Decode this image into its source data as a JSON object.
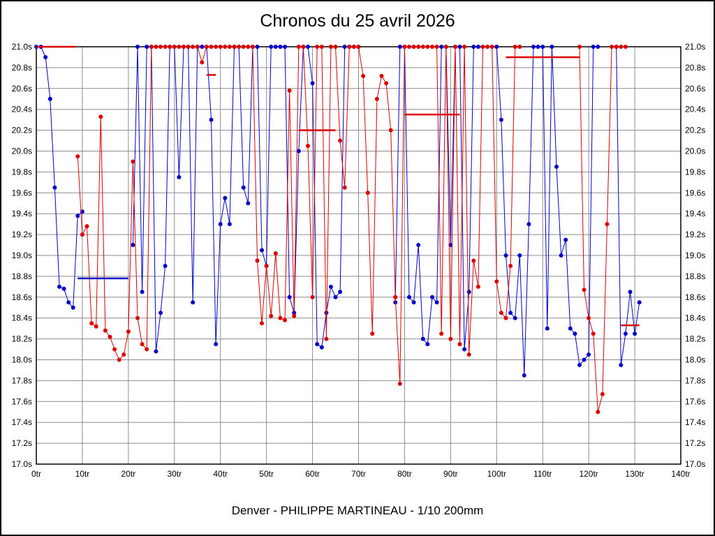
{
  "title": "Chronos du 25 avril 2026",
  "footer": "Denver - PHILIPPE MARTINEAU - 1/10 200mm",
  "chart_data": {
    "type": "line",
    "title": "Chronos du 25 avril 2026",
    "subtitle": "Denver - PHILIPPE MARTINEAU - 1/10 200mm",
    "x_unit": "tr",
    "y_unit": "s",
    "xlim": [
      0,
      140
    ],
    "ylim": [
      17.0,
      21.0
    ],
    "x_tick_step": 10,
    "y_tick_step": 0.2,
    "grid": true,
    "legend_position": "none",
    "clip_max": 21.0,
    "colors": {
      "series_blue": "#0000cc",
      "series_red": "#dd0000",
      "grid": "#8c8c8c",
      "frame": "#000000",
      "background": "#ffffff"
    },
    "series": [
      {
        "name": "driver-blue",
        "color": "#0000cc",
        "points": [
          [
            0,
            21
          ],
          [
            1,
            21
          ],
          [
            2,
            20.9
          ],
          [
            3,
            20.5
          ],
          [
            4,
            19.65
          ],
          [
            5,
            18.7
          ],
          [
            6,
            18.68
          ],
          [
            7,
            18.55
          ],
          [
            8,
            18.5
          ],
          [
            9,
            19.38
          ],
          [
            10,
            19.42
          ],
          [
            21,
            19.1
          ],
          [
            22,
            21
          ],
          [
            23,
            18.65
          ],
          [
            24,
            21
          ],
          [
            25,
            21
          ],
          [
            26,
            18.08
          ],
          [
            27,
            18.45
          ],
          [
            28,
            18.9
          ],
          [
            29,
            21
          ],
          [
            30,
            21
          ],
          [
            31,
            19.75
          ],
          [
            32,
            21
          ],
          [
            33,
            21
          ],
          [
            34,
            18.55
          ],
          [
            35,
            21
          ],
          [
            36,
            21
          ],
          [
            37,
            21
          ],
          [
            38,
            20.3
          ],
          [
            39,
            18.15
          ],
          [
            40,
            19.3
          ],
          [
            41,
            19.55
          ],
          [
            42,
            19.3
          ],
          [
            43,
            21
          ],
          [
            44,
            21
          ],
          [
            45,
            19.65
          ],
          [
            46,
            19.5
          ],
          [
            47,
            21
          ],
          [
            48,
            21
          ],
          [
            49,
            19.05
          ],
          [
            50,
            18.9
          ],
          [
            51,
            21
          ],
          [
            52,
            21
          ],
          [
            53,
            21
          ],
          [
            54,
            21
          ],
          [
            55,
            18.6
          ],
          [
            56,
            18.45
          ],
          [
            57,
            20.0
          ],
          [
            58,
            21
          ],
          [
            59,
            21
          ],
          [
            60,
            20.65
          ],
          [
            61,
            18.15
          ],
          [
            62,
            18.12
          ],
          [
            63,
            18.45
          ],
          [
            64,
            18.7
          ],
          [
            65,
            18.6
          ],
          [
            66,
            18.65
          ],
          [
            67,
            21
          ],
          [
            68,
            21
          ],
          [
            69,
            21
          ],
          [
            70,
            21
          ],
          [
            78,
            18.55
          ],
          [
            79,
            21
          ],
          [
            80,
            21
          ],
          [
            81,
            18.6
          ],
          [
            82,
            18.55
          ],
          [
            83,
            19.1
          ],
          [
            84,
            18.2
          ],
          [
            85,
            18.15
          ],
          [
            86,
            18.6
          ],
          [
            87,
            18.55
          ],
          [
            88,
            21
          ],
          [
            89,
            21
          ],
          [
            90,
            19.1
          ],
          [
            91,
            21
          ],
          [
            92,
            21
          ],
          [
            93,
            18.1
          ],
          [
            94,
            18.65
          ],
          [
            95,
            21
          ],
          [
            96,
            21
          ],
          [
            100,
            21
          ],
          [
            101,
            20.3
          ],
          [
            102,
            19.0
          ],
          [
            103,
            18.45
          ],
          [
            104,
            18.4
          ],
          [
            105,
            19.0
          ],
          [
            106,
            17.85
          ],
          [
            107,
            19.3
          ],
          [
            108,
            21
          ],
          [
            109,
            21
          ],
          [
            110,
            21
          ],
          [
            111,
            18.3
          ],
          [
            112,
            21
          ],
          [
            113,
            19.85
          ],
          [
            114,
            19.0
          ],
          [
            115,
            19.15
          ],
          [
            116,
            18.3
          ],
          [
            117,
            18.25
          ],
          [
            118,
            17.95
          ],
          [
            119,
            18.0
          ],
          [
            120,
            18.05
          ],
          [
            121,
            21
          ],
          [
            122,
            21
          ],
          [
            126,
            21
          ],
          [
            127,
            17.95
          ],
          [
            128,
            18.25
          ],
          [
            129,
            18.65
          ],
          [
            130,
            18.25
          ],
          [
            131,
            18.55
          ]
        ]
      },
      {
        "name": "driver-red",
        "color": "#dd0000",
        "points": [
          [
            9,
            19.95
          ],
          [
            10,
            19.2
          ],
          [
            11,
            19.28
          ],
          [
            12,
            18.35
          ],
          [
            13,
            18.32
          ],
          [
            14,
            20.33
          ],
          [
            15,
            18.28
          ],
          [
            16,
            18.22
          ],
          [
            17,
            18.1
          ],
          [
            18,
            18.0
          ],
          [
            19,
            18.05
          ],
          [
            20,
            18.27
          ],
          [
            21,
            19.9
          ],
          [
            22,
            18.4
          ],
          [
            23,
            18.15
          ],
          [
            24,
            18.1
          ],
          [
            25,
            21
          ],
          [
            26,
            21
          ],
          [
            27,
            21
          ],
          [
            28,
            21
          ],
          [
            29,
            21
          ],
          [
            30,
            21
          ],
          [
            31,
            21
          ],
          [
            32,
            21
          ],
          [
            33,
            21
          ],
          [
            34,
            21
          ],
          [
            35,
            21
          ],
          [
            36,
            20.85
          ],
          [
            37,
            21
          ],
          [
            38,
            21
          ],
          [
            39,
            21
          ],
          [
            40,
            21
          ],
          [
            41,
            21
          ],
          [
            42,
            21
          ],
          [
            43,
            21
          ],
          [
            44,
            21
          ],
          [
            45,
            21
          ],
          [
            46,
            21
          ],
          [
            47,
            21
          ],
          [
            48,
            18.95
          ],
          [
            49,
            18.35
          ],
          [
            50,
            18.9
          ],
          [
            51,
            18.42
          ],
          [
            52,
            19.02
          ],
          [
            53,
            18.4
          ],
          [
            54,
            18.38
          ],
          [
            55,
            20.58
          ],
          [
            56,
            18.42
          ],
          [
            57,
            21
          ],
          [
            58,
            21
          ],
          [
            59,
            20.05
          ],
          [
            60,
            18.6
          ],
          [
            61,
            21
          ],
          [
            62,
            21
          ],
          [
            63,
            18.2
          ],
          [
            64,
            21
          ],
          [
            65,
            21
          ],
          [
            66,
            20.1
          ],
          [
            67,
            19.65
          ],
          [
            68,
            21
          ],
          [
            69,
            21
          ],
          [
            70,
            21
          ],
          [
            71,
            20.72
          ],
          [
            72,
            19.6
          ],
          [
            73,
            18.25
          ],
          [
            74,
            20.5
          ],
          [
            75,
            20.72
          ],
          [
            76,
            20.65
          ],
          [
            77,
            20.2
          ],
          [
            78,
            18.6
          ],
          [
            79,
            17.77
          ],
          [
            80,
            21
          ],
          [
            81,
            21
          ],
          [
            82,
            21
          ],
          [
            83,
            21
          ],
          [
            84,
            21
          ],
          [
            85,
            21
          ],
          [
            86,
            21
          ],
          [
            87,
            21
          ],
          [
            88,
            18.25
          ],
          [
            89,
            21
          ],
          [
            90,
            18.2
          ],
          [
            91,
            21
          ],
          [
            92,
            18.15
          ],
          [
            93,
            21
          ],
          [
            94,
            18.05
          ],
          [
            95,
            18.95
          ],
          [
            96,
            18.7
          ],
          [
            97,
            21
          ],
          [
            98,
            21
          ],
          [
            99,
            21
          ],
          [
            100,
            18.75
          ],
          [
            101,
            18.45
          ],
          [
            102,
            18.4
          ],
          [
            103,
            18.9
          ],
          [
            104,
            21
          ],
          [
            105,
            21
          ],
          [
            118,
            21
          ],
          [
            119,
            18.67
          ],
          [
            120,
            18.4
          ],
          [
            121,
            18.25
          ],
          [
            122,
            17.5
          ],
          [
            123,
            17.67
          ],
          [
            124,
            19.3
          ],
          [
            125,
            21
          ],
          [
            126,
            21
          ],
          [
            127,
            21
          ],
          [
            128,
            21
          ]
        ]
      }
    ],
    "average_segments": [
      {
        "color": "#dd0000",
        "y": 21.0,
        "x1": 0,
        "x2": 8.5
      },
      {
        "color": "#0000cc",
        "y": 18.78,
        "x1": 9,
        "x2": 20
      },
      {
        "color": "#dd0000",
        "y": 20.73,
        "x1": 37,
        "x2": 39
      },
      {
        "color": "#dd0000",
        "y": 20.2,
        "x1": 57,
        "x2": 65
      },
      {
        "color": "#dd0000",
        "y": 20.35,
        "x1": 80,
        "x2": 92
      },
      {
        "color": "#dd0000",
        "y": 20.9,
        "x1": 102,
        "x2": 118
      },
      {
        "color": "#dd0000",
        "y": 18.33,
        "x1": 127,
        "x2": 131
      }
    ]
  }
}
